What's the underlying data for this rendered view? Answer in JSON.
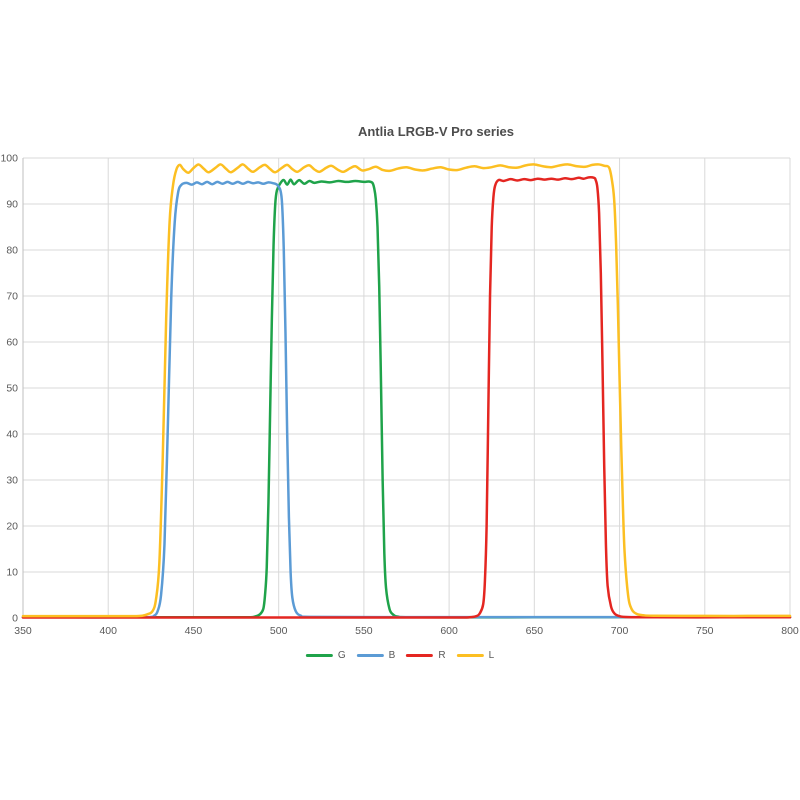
{
  "chart_data": {
    "type": "line",
    "title": "Antlia LRGB-V Pro series",
    "xlabel": "",
    "ylabel": "",
    "xlim": [
      350,
      800
    ],
    "ylim": [
      0,
      100
    ],
    "x_ticks": [
      350,
      400,
      450,
      500,
      550,
      600,
      650,
      700,
      750,
      800
    ],
    "y_ticks": [
      0,
      10,
      20,
      30,
      40,
      50,
      60,
      70,
      80,
      90,
      100
    ],
    "grid": "major-only",
    "legend_position": "bottom-center",
    "grid_color": "#d9d9d9",
    "axis_color": "#bfbfbf",
    "tick_label_color": "#595959",
    "series": [
      {
        "name": "G",
        "color": "#1fa34a",
        "points": [
          [
            350,
            0.15
          ],
          [
            400,
            0.15
          ],
          [
            450,
            0.15
          ],
          [
            480,
            0.15
          ],
          [
            486,
            0.3
          ],
          [
            489,
            0.8
          ],
          [
            491,
            2
          ],
          [
            492,
            5
          ],
          [
            493,
            11
          ],
          [
            494,
            25
          ],
          [
            495,
            45
          ],
          [
            496,
            65
          ],
          [
            497,
            81
          ],
          [
            498,
            90
          ],
          [
            499,
            93
          ],
          [
            501,
            94.5
          ],
          [
            503,
            95.2
          ],
          [
            505,
            94.2
          ],
          [
            507,
            95.3
          ],
          [
            509,
            94.3
          ],
          [
            512,
            95.2
          ],
          [
            515,
            94.4
          ],
          [
            518,
            95.0
          ],
          [
            521,
            94.6
          ],
          [
            525,
            94.9
          ],
          [
            530,
            94.7
          ],
          [
            535,
            95.0
          ],
          [
            540,
            94.8
          ],
          [
            545,
            95.0
          ],
          [
            550,
            94.8
          ],
          [
            553,
            94.9
          ],
          [
            555,
            94.6
          ],
          [
            556,
            93.5
          ],
          [
            557,
            91
          ],
          [
            558,
            85
          ],
          [
            559,
            72
          ],
          [
            560,
            52
          ],
          [
            561,
            30
          ],
          [
            562,
            14
          ],
          [
            563,
            6.5
          ],
          [
            565,
            2
          ],
          [
            567,
            0.8
          ],
          [
            570,
            0.3
          ],
          [
            580,
            0.15
          ],
          [
            650,
            0.15
          ],
          [
            720,
            0.15
          ],
          [
            800,
            0.15
          ]
        ]
      },
      {
        "name": "B",
        "color": "#5b9bd5",
        "points": [
          [
            350,
            0.15
          ],
          [
            380,
            0.15
          ],
          [
            410,
            0.15
          ],
          [
            424,
            0.2
          ],
          [
            427,
            0.5
          ],
          [
            429,
            1.5
          ],
          [
            431,
            5
          ],
          [
            433,
            16
          ],
          [
            435,
            42
          ],
          [
            437,
            70
          ],
          [
            439,
            86
          ],
          [
            441,
            92.5
          ],
          [
            443,
            94.2
          ],
          [
            446,
            94.6
          ],
          [
            449,
            94.2
          ],
          [
            452,
            94.7
          ],
          [
            455,
            94.3
          ],
          [
            458,
            94.8
          ],
          [
            461,
            94.3
          ],
          [
            464,
            94.8
          ],
          [
            467,
            94.4
          ],
          [
            470,
            94.8
          ],
          [
            473,
            94.4
          ],
          [
            476,
            94.8
          ],
          [
            479,
            94.4
          ],
          [
            482,
            94.8
          ],
          [
            485,
            94.5
          ],
          [
            488,
            94.7
          ],
          [
            491,
            94.4
          ],
          [
            494,
            94.7
          ],
          [
            497,
            94.5
          ],
          [
            499,
            94.2
          ],
          [
            501,
            93
          ],
          [
            502,
            90
          ],
          [
            503,
            80
          ],
          [
            504,
            62
          ],
          [
            505,
            40
          ],
          [
            506,
            22
          ],
          [
            507,
            10
          ],
          [
            508,
            4.5
          ],
          [
            510,
            1.5
          ],
          [
            513,
            0.5
          ],
          [
            518,
            0.25
          ],
          [
            560,
            0.2
          ],
          [
            620,
            0.2
          ],
          [
            680,
            0.2
          ],
          [
            740,
            0.2
          ],
          [
            800,
            0.2
          ]
        ]
      },
      {
        "name": "R",
        "color": "#e42621",
        "points": [
          [
            350,
            0.1
          ],
          [
            400,
            0.1
          ],
          [
            450,
            0.1
          ],
          [
            500,
            0.1
          ],
          [
            550,
            0.1
          ],
          [
            600,
            0.1
          ],
          [
            612,
            0.15
          ],
          [
            616,
            0.4
          ],
          [
            618,
            1
          ],
          [
            620,
            3
          ],
          [
            621,
            8
          ],
          [
            622,
            20
          ],
          [
            623,
            45
          ],
          [
            624,
            70
          ],
          [
            625,
            85
          ],
          [
            626,
            91.5
          ],
          [
            627,
            94
          ],
          [
            629,
            95.2
          ],
          [
            632,
            95.0
          ],
          [
            636,
            95.4
          ],
          [
            640,
            95.1
          ],
          [
            644,
            95.4
          ],
          [
            648,
            95.2
          ],
          [
            652,
            95.5
          ],
          [
            656,
            95.3
          ],
          [
            660,
            95.5
          ],
          [
            664,
            95.3
          ],
          [
            668,
            95.6
          ],
          [
            672,
            95.4
          ],
          [
            676,
            95.7
          ],
          [
            679,
            95.5
          ],
          [
            682,
            95.8
          ],
          [
            685,
            95.7
          ],
          [
            686,
            95.2
          ],
          [
            687,
            93.5
          ],
          [
            688,
            88
          ],
          [
            689,
            75
          ],
          [
            690,
            55
          ],
          [
            691,
            33
          ],
          [
            692,
            16
          ],
          [
            693,
            7
          ],
          [
            695,
            2.5
          ],
          [
            697,
            1
          ],
          [
            700,
            0.4
          ],
          [
            705,
            0.2
          ],
          [
            720,
            0.15
          ],
          [
            760,
            0.15
          ],
          [
            800,
            0.15
          ]
        ]
      },
      {
        "name": "L",
        "color": "#fcbf22",
        "points": [
          [
            350,
            0.4
          ],
          [
            375,
            0.4
          ],
          [
            400,
            0.4
          ],
          [
            415,
            0.4
          ],
          [
            420,
            0.5
          ],
          [
            423,
            0.8
          ],
          [
            426,
            1.5
          ],
          [
            428,
            4
          ],
          [
            430,
            12
          ],
          [
            432,
            35
          ],
          [
            434,
            65
          ],
          [
            436,
            86
          ],
          [
            438,
            94
          ],
          [
            440,
            97.5
          ],
          [
            442,
            98.5
          ],
          [
            444,
            97.6
          ],
          [
            447,
            96.8
          ],
          [
            450,
            97.8
          ],
          [
            453,
            98.6
          ],
          [
            456,
            97.7
          ],
          [
            459,
            96.9
          ],
          [
            463,
            97.9
          ],
          [
            466,
            98.6
          ],
          [
            469,
            97.7
          ],
          [
            472,
            96.9
          ],
          [
            476,
            97.9
          ],
          [
            479,
            98.6
          ],
          [
            482,
            97.7
          ],
          [
            485,
            97.0
          ],
          [
            489,
            98.0
          ],
          [
            492,
            98.5
          ],
          [
            495,
            97.6
          ],
          [
            498,
            96.9
          ],
          [
            502,
            97.9
          ],
          [
            505,
            98.5
          ],
          [
            508,
            97.6
          ],
          [
            511,
            97.0
          ],
          [
            515,
            98.0
          ],
          [
            518,
            98.4
          ],
          [
            521,
            97.5
          ],
          [
            524,
            97.0
          ],
          [
            528,
            97.9
          ],
          [
            531,
            98.3
          ],
          [
            535,
            97.4
          ],
          [
            538,
            97.0
          ],
          [
            542,
            97.8
          ],
          [
            545,
            98.2
          ],
          [
            549,
            97.3
          ],
          [
            553,
            97.6
          ],
          [
            557,
            98.1
          ],
          [
            561,
            97.4
          ],
          [
            565,
            97.2
          ],
          [
            570,
            97.7
          ],
          [
            575,
            98.0
          ],
          [
            580,
            97.5
          ],
          [
            585,
            97.3
          ],
          [
            590,
            97.7
          ],
          [
            595,
            98.0
          ],
          [
            600,
            97.5
          ],
          [
            605,
            97.4
          ],
          [
            610,
            97.9
          ],
          [
            615,
            98.2
          ],
          [
            620,
            97.8
          ],
          [
            625,
            98.0
          ],
          [
            630,
            98.4
          ],
          [
            635,
            98.0
          ],
          [
            640,
            97.9
          ],
          [
            645,
            98.4
          ],
          [
            650,
            98.6
          ],
          [
            655,
            98.2
          ],
          [
            660,
            98.0
          ],
          [
            665,
            98.4
          ],
          [
            670,
            98.6
          ],
          [
            675,
            98.2
          ],
          [
            680,
            98.1
          ],
          [
            684,
            98.5
          ],
          [
            688,
            98.6
          ],
          [
            691,
            98.3
          ],
          [
            694,
            97.8
          ],
          [
            696,
            94
          ],
          [
            697,
            90
          ],
          [
            698,
            81
          ],
          [
            699,
            68
          ],
          [
            700,
            52
          ],
          [
            701,
            37
          ],
          [
            702,
            24
          ],
          [
            703,
            14
          ],
          [
            705,
            5
          ],
          [
            707,
            2
          ],
          [
            710,
            0.9
          ],
          [
            714,
            0.6
          ],
          [
            720,
            0.5
          ],
          [
            750,
            0.45
          ],
          [
            775,
            0.45
          ],
          [
            800,
            0.45
          ]
        ]
      }
    ]
  },
  "legend": {
    "items": [
      "G",
      "B",
      "R",
      "L"
    ]
  }
}
